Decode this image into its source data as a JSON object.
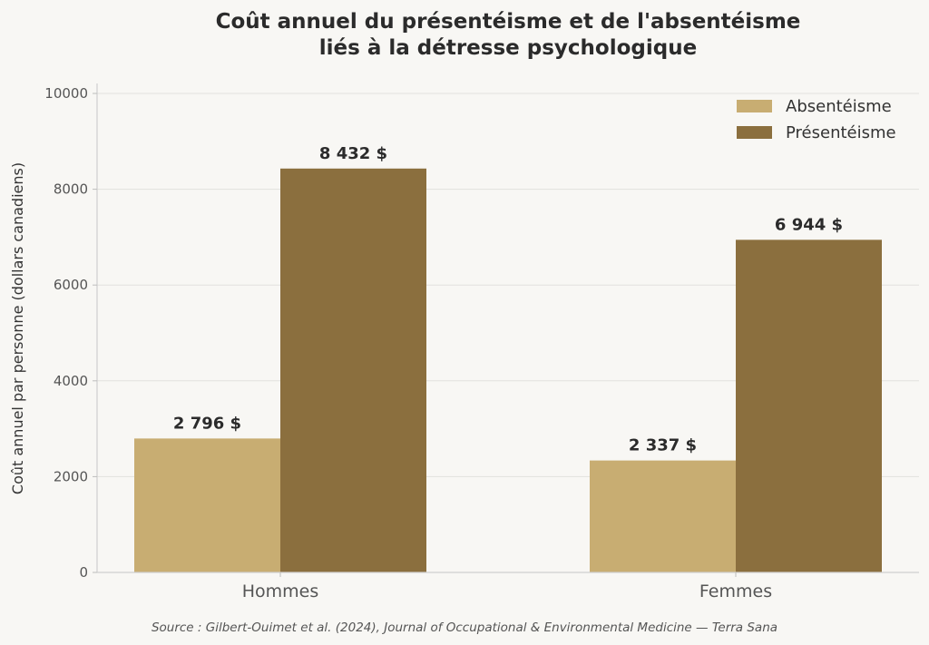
{
  "chart_data": {
    "type": "bar",
    "title": [
      "Coût annuel du présentéisme et de l'absentéisme",
      "liés à la détresse psychologique"
    ],
    "ylabel": "Coût annuel par personne (dollars canadiens)",
    "xlabel": "",
    "categories": [
      "Hommes",
      "Femmes"
    ],
    "series": [
      {
        "name": "Absentéisme",
        "color": "#c8ad72",
        "values": [
          2796,
          2337
        ],
        "labels": [
          "2 796 $",
          "2 337 $"
        ]
      },
      {
        "name": "Présentéisme",
        "color": "#8b6f3e",
        "values": [
          8432,
          6944
        ],
        "labels": [
          "8 432 $",
          "6 944 $"
        ]
      }
    ],
    "ylim": [
      0,
      10000
    ],
    "yticks": [
      0,
      2000,
      4000,
      6000,
      8000,
      10000
    ],
    "ytick_labels": [
      "0",
      "2000",
      "4000",
      "6000",
      "8000",
      "10000"
    ],
    "grid": "horizontal",
    "legend_position": "top-right",
    "source": "Source : Gilbert-Ouimet et al. (2024), Journal of Occupational & Environmental Medicine — Terra Sana"
  }
}
